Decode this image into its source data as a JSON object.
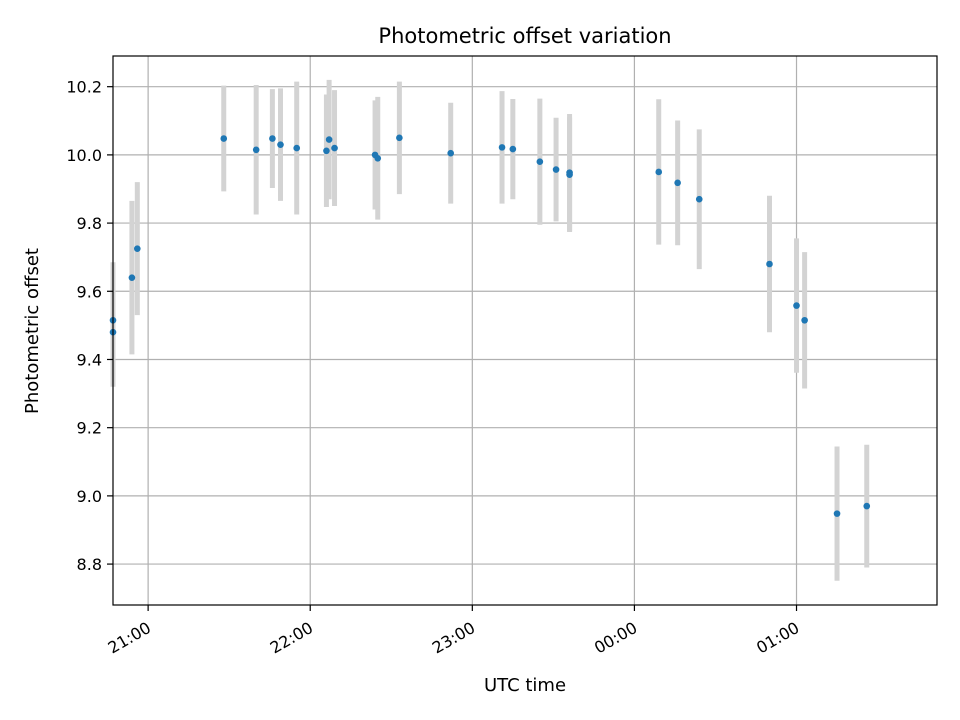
{
  "chart_data": {
    "type": "scatter",
    "title": "Photometric offset variation",
    "xlabel": "UTC time",
    "ylabel": "Photometric offset",
    "grid": true,
    "xlim": [
      "20:47",
      "01:52"
    ],
    "ylim": [
      8.68,
      10.29
    ],
    "x_ticks": [
      "21:00",
      "22:00",
      "23:00",
      "00:00",
      "01:00"
    ],
    "y_ticks": [
      "8.8",
      "9.0",
      "9.2",
      "9.4",
      "9.6",
      "9.8",
      "10.0",
      "10.2"
    ],
    "colors": {
      "points": "#1f77b4",
      "error_bars": "#d3d3d3",
      "grid": "#b0b0b0"
    },
    "points": [
      {
        "time": "20:47",
        "offset": 9.515,
        "error": 0.17
      },
      {
        "time": "20:47",
        "offset": 9.48,
        "error": 0.16
      },
      {
        "time": "20:54",
        "offset": 9.64,
        "error": 0.225
      },
      {
        "time": "20:56",
        "offset": 9.725,
        "error": 0.195
      },
      {
        "time": "21:28",
        "offset": 10.048,
        "error": 0.155
      },
      {
        "time": "21:40",
        "offset": 10.015,
        "error": 0.19
      },
      {
        "time": "21:46",
        "offset": 10.048,
        "error": 0.145
      },
      {
        "time": "21:49",
        "offset": 10.03,
        "error": 0.165
      },
      {
        "time": "21:55",
        "offset": 10.02,
        "error": 0.195
      },
      {
        "time": "22:06",
        "offset": 10.012,
        "error": 0.165
      },
      {
        "time": "22:07",
        "offset": 10.045,
        "error": 0.175
      },
      {
        "time": "22:09",
        "offset": 10.02,
        "error": 0.17
      },
      {
        "time": "22:24",
        "offset": 10.0,
        "error": 0.16
      },
      {
        "time": "22:25",
        "offset": 9.99,
        "error": 0.18
      },
      {
        "time": "22:33",
        "offset": 10.05,
        "error": 0.165
      },
      {
        "time": "22:52",
        "offset": 10.005,
        "error": 0.148
      },
      {
        "time": "23:11",
        "offset": 10.022,
        "error": 0.165
      },
      {
        "time": "23:15",
        "offset": 10.017,
        "error": 0.147
      },
      {
        "time": "23:25",
        "offset": 9.98,
        "error": 0.185
      },
      {
        "time": "23:31",
        "offset": 9.957,
        "error": 0.152
      },
      {
        "time": "23:36",
        "offset": 9.948,
        "error": 0.172
      },
      {
        "time": "23:36",
        "offset": 9.942,
        "error": 0.168
      },
      {
        "time": "00:09",
        "offset": 9.95,
        "error": 0.213
      },
      {
        "time": "00:16",
        "offset": 9.918,
        "error": 0.183
      },
      {
        "time": "00:24",
        "offset": 9.87,
        "error": 0.205
      },
      {
        "time": "00:50",
        "offset": 9.68,
        "error": 0.2
      },
      {
        "time": "01:00",
        "offset": 9.558,
        "error": 0.197
      },
      {
        "time": "01:03",
        "offset": 9.515,
        "error": 0.2
      },
      {
        "time": "01:15",
        "offset": 8.948,
        "error": 0.197
      },
      {
        "time": "01:26",
        "offset": 8.97,
        "error": 0.18
      }
    ]
  }
}
